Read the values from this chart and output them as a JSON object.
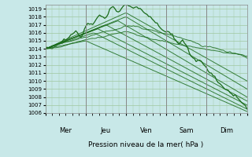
{
  "bg_color": "#c8e8e8",
  "grid_color": "#a0c8a0",
  "line_color": "#1a6b1a",
  "xlabel": "Pression niveau de la mer( hPa )",
  "x_day_labels": [
    "Mer",
    "Jeu",
    "Ven",
    "Sam",
    "Dim"
  ],
  "ylim": [
    1006,
    1019.5
  ],
  "yticks": [
    1006,
    1007,
    1008,
    1009,
    1010,
    1011,
    1012,
    1013,
    1014,
    1015,
    1016,
    1017,
    1018,
    1019
  ],
  "num_days": 5,
  "points_per_day": 24
}
